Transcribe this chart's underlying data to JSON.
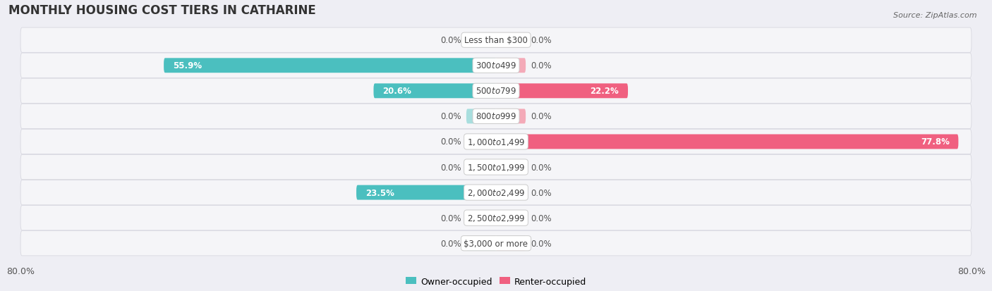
{
  "title": "MONTHLY HOUSING COST TIERS IN CATHARINE",
  "source": "Source: ZipAtlas.com",
  "categories": [
    "Less than $300",
    "$300 to $499",
    "$500 to $799",
    "$800 to $999",
    "$1,000 to $1,499",
    "$1,500 to $1,999",
    "$2,000 to $2,499",
    "$2,500 to $2,999",
    "$3,000 or more"
  ],
  "owner_values": [
    0.0,
    55.9,
    20.6,
    0.0,
    0.0,
    0.0,
    23.5,
    0.0,
    0.0
  ],
  "renter_values": [
    0.0,
    0.0,
    22.2,
    0.0,
    77.8,
    0.0,
    0.0,
    0.0,
    0.0
  ],
  "owner_color": "#4bbfbf",
  "owner_color_light": "#a8dede",
  "renter_color": "#f06080",
  "renter_color_light": "#f4aab8",
  "background_color": "#eeeef4",
  "row_bg_color": "#f5f5f8",
  "max_value": 80.0,
  "stub_value": 5.0,
  "x_left_label": "80.0%",
  "x_right_label": "80.0%",
  "title_fontsize": 12,
  "label_fontsize": 8.5,
  "category_fontsize": 8.5,
  "source_fontsize": 8
}
